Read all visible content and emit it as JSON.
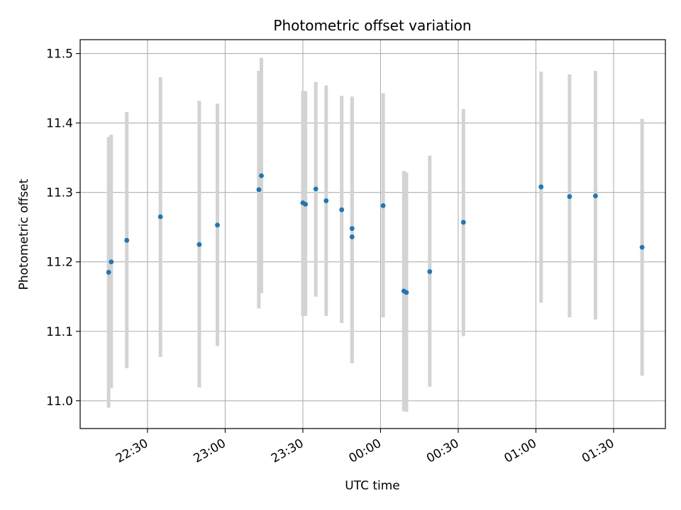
{
  "chart_data": {
    "type": "scatter",
    "title": "Photometric offset variation",
    "xlabel": "UTC time",
    "ylabel": "Photometric offset",
    "x_axis_kind": "time",
    "x_range": [
      "22:04",
      "01:50"
    ],
    "ylim": [
      10.96,
      11.52
    ],
    "grid": true,
    "x_ticks": [
      "22:30",
      "23:00",
      "23:30",
      "00:00",
      "00:30",
      "01:00",
      "01:30"
    ],
    "y_ticks": [
      "11.0",
      "11.1",
      "11.2",
      "11.3",
      "11.4",
      "11.5"
    ],
    "colors": {
      "point": "#1f77b4",
      "errorbar": "#d3d3d3",
      "grid": "#b0b0b0"
    },
    "points": [
      {
        "x": "22:15",
        "y": 11.185,
        "y_low": 10.99,
        "y_high": 11.38
      },
      {
        "x": "22:16",
        "y": 11.2,
        "y_low": 11.018,
        "y_high": 11.383
      },
      {
        "x": "22:22",
        "y": 11.231,
        "y_low": 11.047,
        "y_high": 11.416
      },
      {
        "x": "22:35",
        "y": 11.265,
        "y_low": 11.063,
        "y_high": 11.466
      },
      {
        "x": "22:50",
        "y": 11.225,
        "y_low": 11.019,
        "y_high": 11.432
      },
      {
        "x": "22:57",
        "y": 11.253,
        "y_low": 11.079,
        "y_high": 11.428
      },
      {
        "x": "23:13",
        "y": 11.304,
        "y_low": 11.133,
        "y_high": 11.475
      },
      {
        "x": "23:14",
        "y": 11.324,
        "y_low": 11.155,
        "y_high": 11.494
      },
      {
        "x": "23:30",
        "y": 11.285,
        "y_low": 11.122,
        "y_high": 11.446
      },
      {
        "x": "23:31",
        "y": 11.283,
        "y_low": 11.122,
        "y_high": 11.446
      },
      {
        "x": "23:35",
        "y": 11.305,
        "y_low": 11.15,
        "y_high": 11.459
      },
      {
        "x": "23:39",
        "y": 11.288,
        "y_low": 11.122,
        "y_high": 11.454
      },
      {
        "x": "23:45",
        "y": 11.275,
        "y_low": 11.112,
        "y_high": 11.439
      },
      {
        "x": "23:49",
        "y": 11.236,
        "y_low": 11.054,
        "y_high": 11.434
      },
      {
        "x": "23:49",
        "y": 11.248,
        "y_low": 11.061,
        "y_high": 11.438
      },
      {
        "x": "00:01",
        "y": 11.281,
        "y_low": 11.12,
        "y_high": 11.443
      },
      {
        "x": "00:09",
        "y": 11.158,
        "y_low": 10.985,
        "y_high": 11.331
      },
      {
        "x": "00:10",
        "y": 11.156,
        "y_low": 10.984,
        "y_high": 11.329
      },
      {
        "x": "00:19",
        "y": 11.186,
        "y_low": 11.02,
        "y_high": 11.353
      },
      {
        "x": "00:32",
        "y": 11.257,
        "y_low": 11.093,
        "y_high": 11.42
      },
      {
        "x": "01:02",
        "y": 11.308,
        "y_low": 11.141,
        "y_high": 11.474
      },
      {
        "x": "01:13",
        "y": 11.294,
        "y_low": 11.12,
        "y_high": 11.47
      },
      {
        "x": "01:23",
        "y": 11.295,
        "y_low": 11.117,
        "y_high": 11.475
      },
      {
        "x": "01:41",
        "y": 11.221,
        "y_low": 11.036,
        "y_high": 11.406
      }
    ]
  }
}
